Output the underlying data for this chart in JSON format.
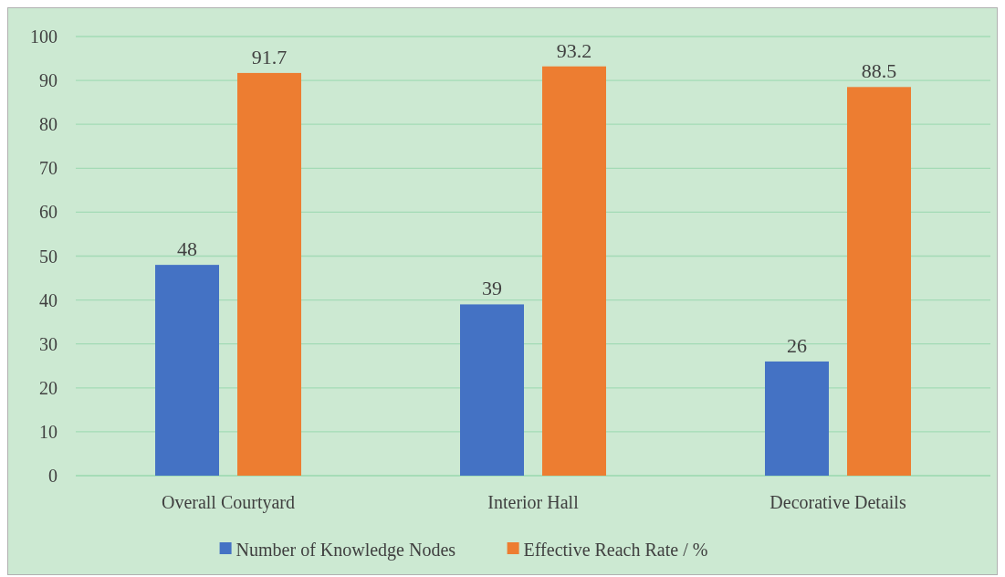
{
  "chart_data": {
    "type": "bar",
    "categories": [
      "Overall Courtyard",
      "Interior Hall",
      "Decorative Details"
    ],
    "series": [
      {
        "name": "Number of Knowledge Nodes",
        "color": "#4472c4",
        "values": [
          48,
          39,
          26
        ]
      },
      {
        "name": "Effective Reach Rate / %",
        "color": "#ed7d31",
        "values": [
          91.7,
          93.2,
          88.5
        ]
      }
    ],
    "ylim": [
      0,
      100
    ],
    "yticks": [
      0,
      10,
      20,
      30,
      40,
      50,
      60,
      70,
      80,
      90,
      100
    ],
    "grid": "y",
    "legend": "bottom",
    "data_labels": true
  }
}
